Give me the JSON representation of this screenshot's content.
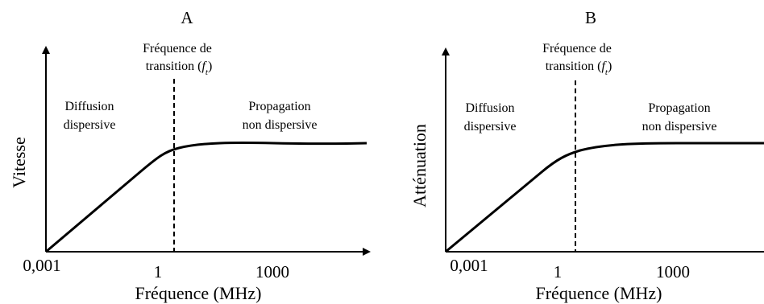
{
  "panels": [
    {
      "title": "A",
      "ylabel": "Vitesse",
      "xlabel": "Fréquence (MHz)",
      "tick_labels": [
        "0,001",
        "1",
        "1000"
      ],
      "transition_label_line1": "Fréquence de",
      "transition_label_prefix": "transition (",
      "transition_symbol": "f",
      "transition_subscript": "t",
      "transition_suffix": ")",
      "left_region_line1": "Diffusion",
      "left_region_line2": "dispersive",
      "right_region_line1": "Propagation",
      "right_region_line2": "non dispersive"
    },
    {
      "title": "B",
      "ylabel": "Atténuation",
      "xlabel": "Fréquence (MHz)",
      "tick_labels": [
        "0,001",
        "1",
        "1000"
      ],
      "transition_label_line1": "Fréquence de",
      "transition_label_prefix": "transition (",
      "transition_symbol": "f",
      "transition_subscript": "t",
      "transition_suffix": ")",
      "left_region_line1": "Diffusion",
      "left_region_line2": "dispersive",
      "right_region_line1": "Propagation",
      "right_region_line2": "non dispersive"
    }
  ]
}
